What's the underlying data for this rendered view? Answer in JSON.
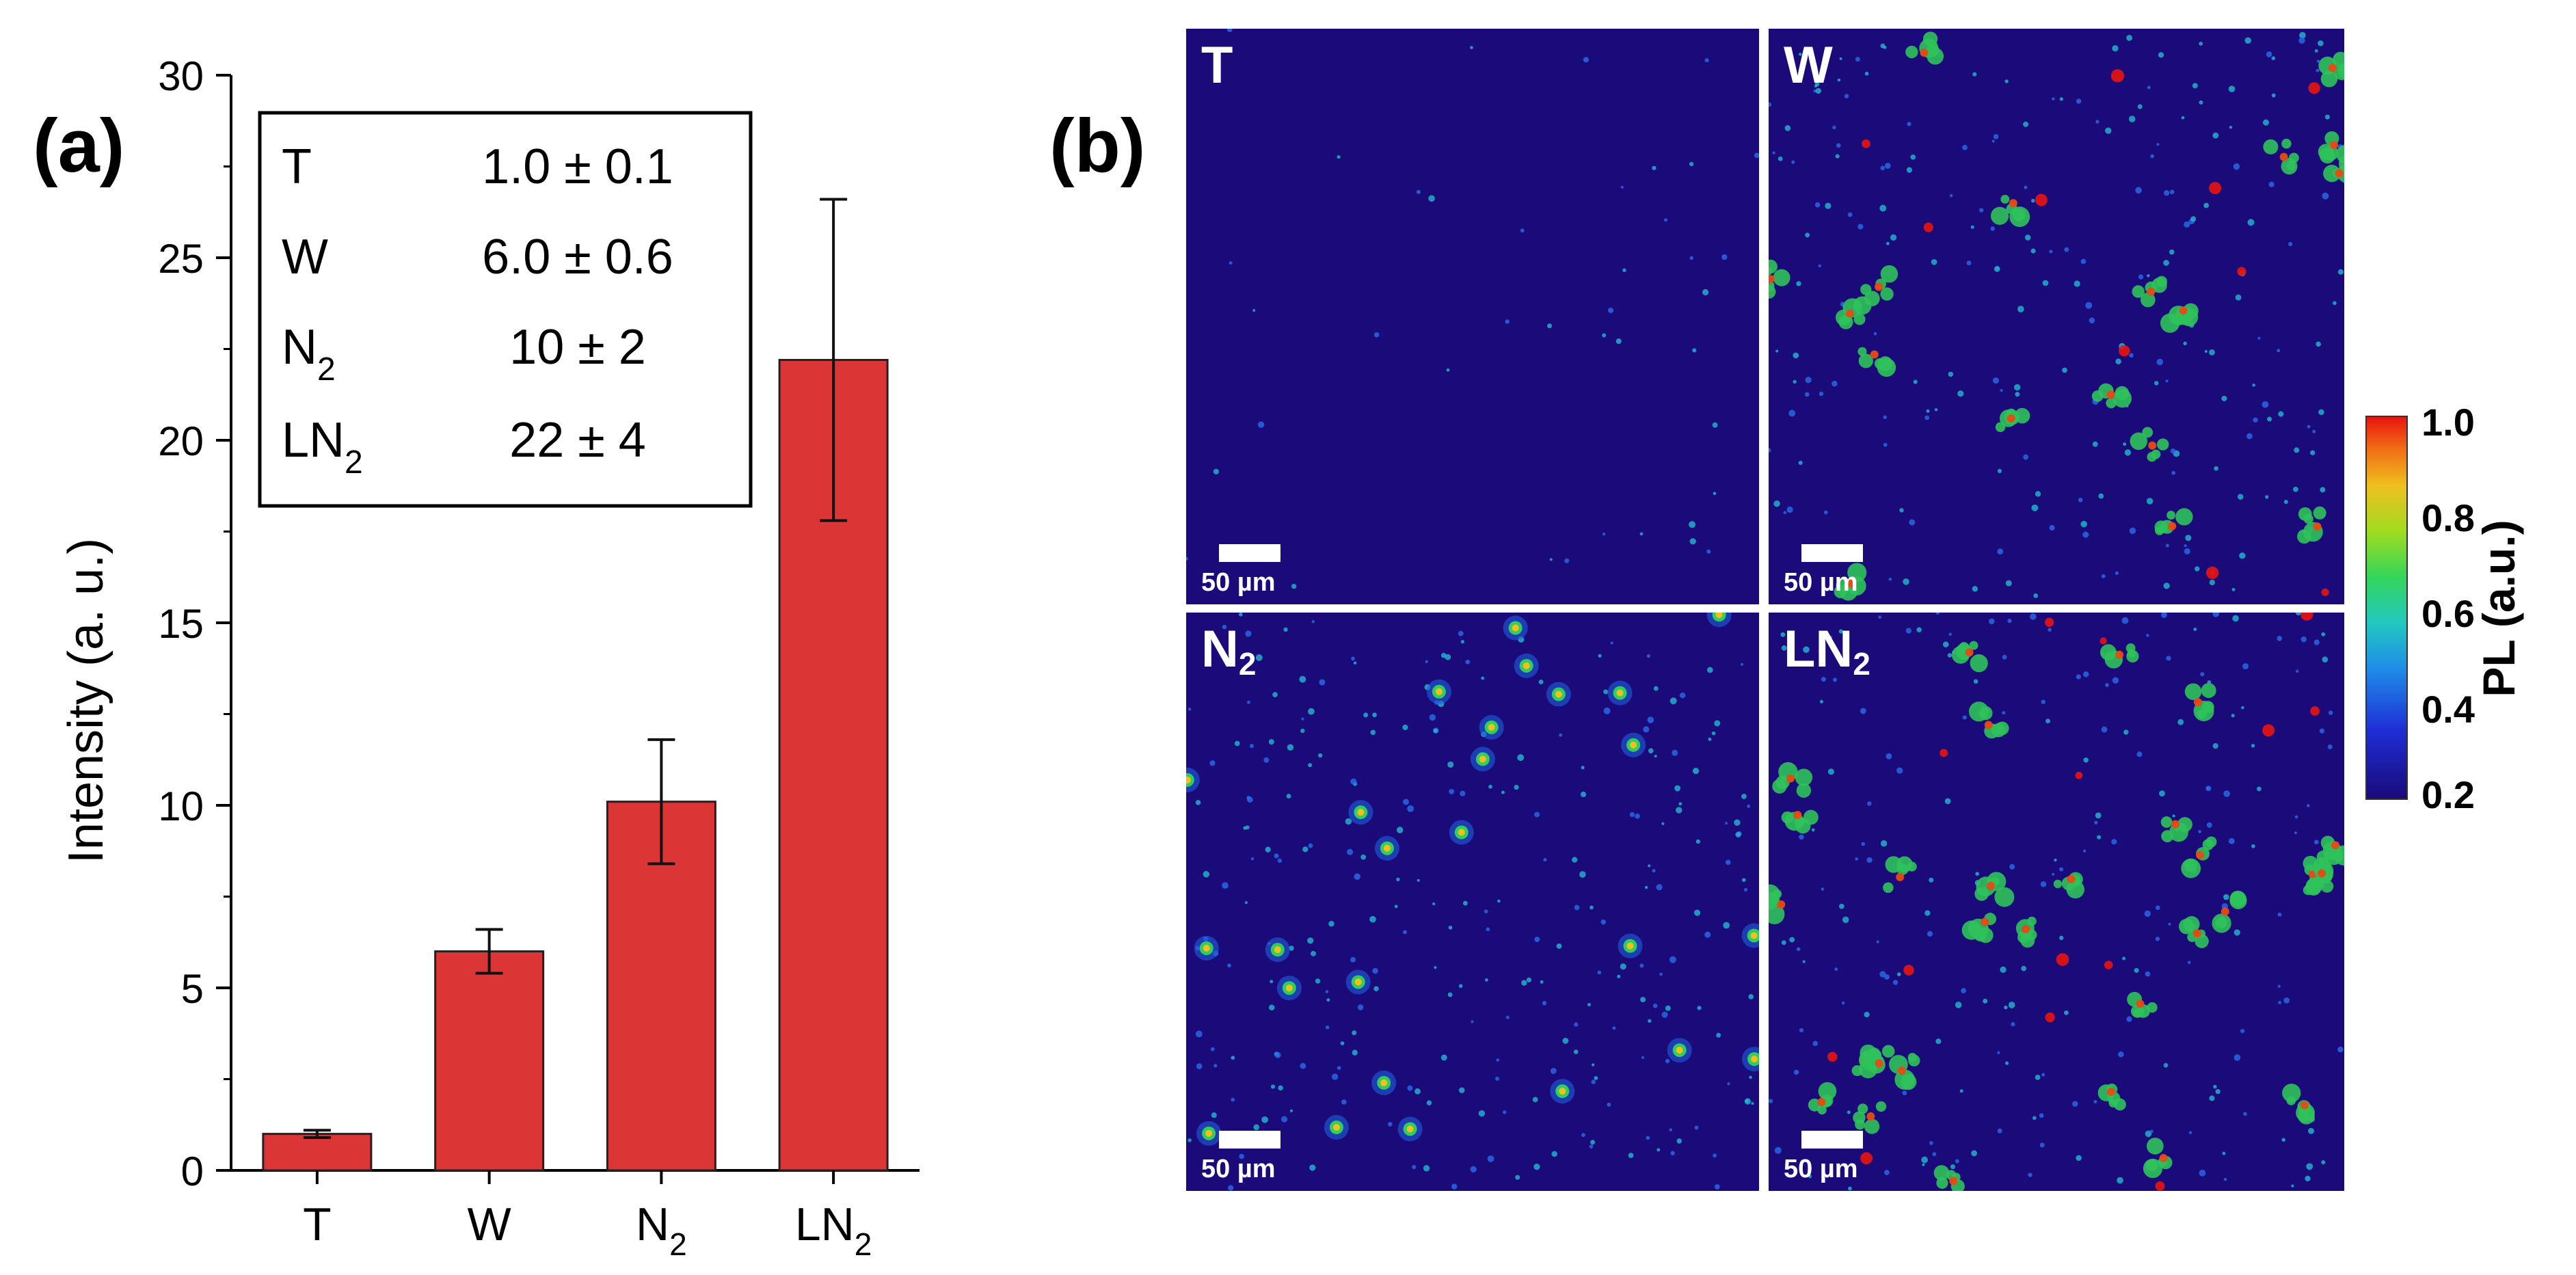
{
  "panel_labels": {
    "a": "(a)",
    "b": "(b)"
  },
  "chart_data": {
    "type": "bar",
    "categories": [
      "T",
      "W",
      "N2",
      "LN2"
    ],
    "category_display": [
      {
        "main": "T",
        "sub": ""
      },
      {
        "main": "W",
        "sub": ""
      },
      {
        "main": "N",
        "sub": "2"
      },
      {
        "main": "LN",
        "sub": "2"
      }
    ],
    "values": [
      1.0,
      6.0,
      10.1,
      22.2
    ],
    "errors": [
      0.1,
      0.6,
      1.7,
      4.4
    ],
    "ylabel": "Intensity (a. u.)",
    "ylim": [
      0,
      30
    ],
    "yticks": [
      0,
      5,
      10,
      15,
      20,
      25,
      30
    ],
    "bar_color": "#dc3535",
    "table": [
      {
        "label": "T",
        "sub": "",
        "value": "1.0 ± 0.1"
      },
      {
        "label": "W",
        "sub": "",
        "value": "6.0 ± 0.6"
      },
      {
        "label": "N",
        "sub": "2",
        "value": "10 ± 2"
      },
      {
        "label": "LN",
        "sub": "2",
        "value": "22 ± 4"
      }
    ]
  },
  "pl_maps": [
    {
      "title": "T",
      "sub": "",
      "scale_label": "50 µm",
      "spots": "sparse"
    },
    {
      "title": "W",
      "sub": "",
      "scale_label": "50 µm",
      "spots": "few"
    },
    {
      "title": "N",
      "sub": "2",
      "scale_label": "50 µm",
      "spots": "moderate"
    },
    {
      "title": "LN",
      "sub": "2",
      "scale_label": "50 µm",
      "spots": "dense"
    }
  ],
  "colorbar": {
    "title": "PL (a.u.)",
    "ticks": [
      "1.0",
      "0.8",
      "0.6",
      "0.4",
      "0.2"
    ],
    "colors": [
      "#1a0a7a",
      "#1e2fd6",
      "#22c8c0",
      "#33d65a",
      "#f0c020",
      "#e8140e"
    ]
  }
}
